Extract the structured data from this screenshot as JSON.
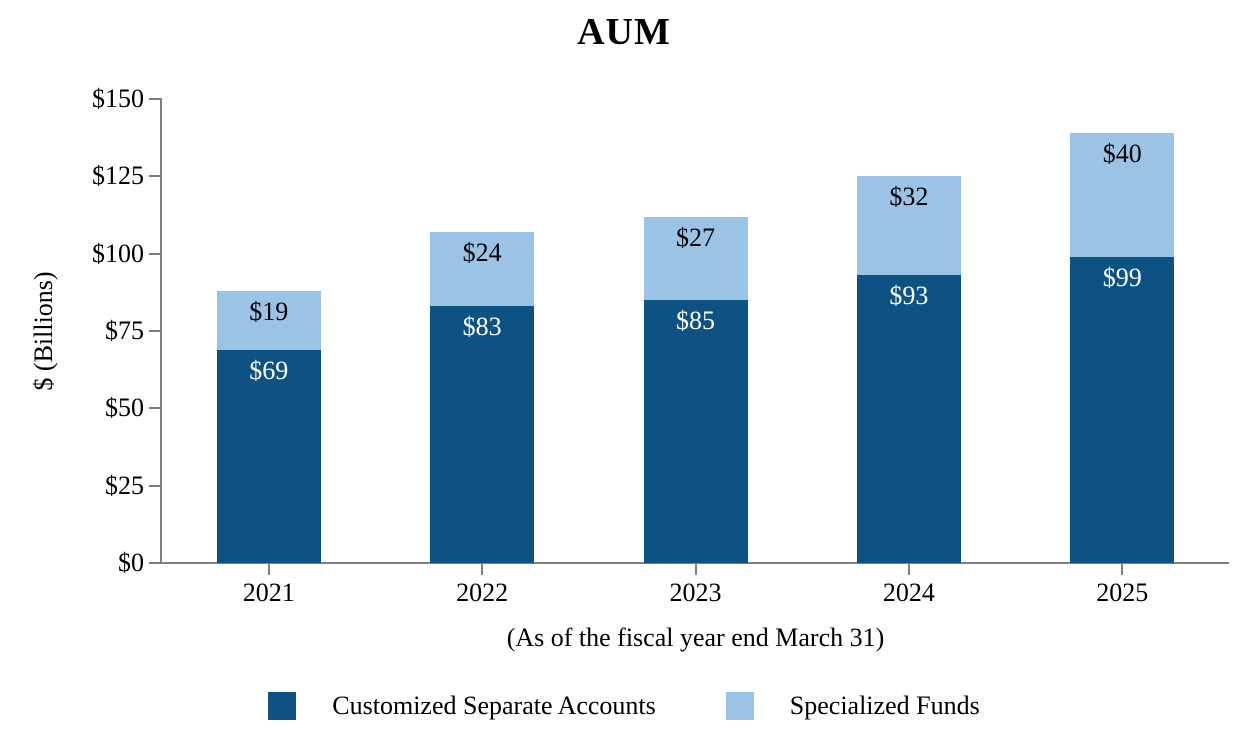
{
  "chart_data": {
    "type": "bar",
    "stacked": true,
    "title": "AUM",
    "ylabel": "$ (Billions)",
    "xlabel": "(As of the fiscal year end March 31)",
    "categories": [
      "2021",
      "2022",
      "2023",
      "2024",
      "2025"
    ],
    "series": [
      {
        "name": "Customized Separate Accounts",
        "color": "#0E5183",
        "label_color": "#FFFFFF",
        "values": [
          69,
          83,
          85,
          93,
          99
        ],
        "labels": [
          "$69",
          "$83",
          "$85",
          "$93",
          "$99"
        ]
      },
      {
        "name": "Specialized Funds",
        "color": "#9BC3E6",
        "label_color": "#000000",
        "values": [
          19,
          24,
          27,
          32,
          40
        ],
        "labels": [
          "$19",
          "$24",
          "$27",
          "$32",
          "$40"
        ]
      }
    ],
    "value_prefix": "$",
    "ylim": [
      0,
      150
    ],
    "y_tick_step": 25,
    "y_ticks": [
      "$0",
      "$25",
      "$50",
      "$75",
      "$100",
      "$125",
      "$150"
    ],
    "grid": false,
    "legend_position": "bottom",
    "axis_color": "#7F7F7F",
    "data_label_position": "inside-end"
  }
}
